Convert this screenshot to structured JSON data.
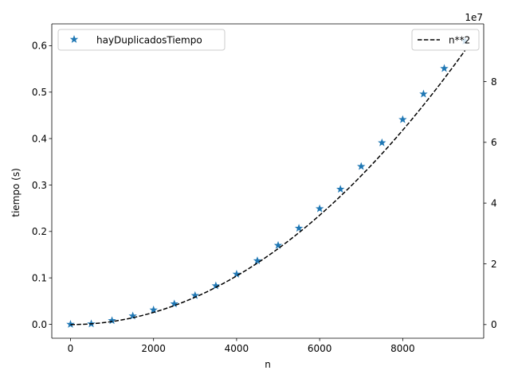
{
  "chart_data": {
    "type": "scatter",
    "title": "",
    "xlabel": "n",
    "ylabel_left": "tiempo (s)",
    "ylabel_right": "",
    "right_axis_offset_text": "1e7",
    "xlim": [
      -450,
      9950
    ],
    "ylim_left": [
      -0.03,
      0.647
    ],
    "ylim_right": [
      -4500000,
      99000000
    ],
    "x_ticks": [
      0,
      2000,
      4000,
      6000,
      8000
    ],
    "y_ticks_left": [
      0.0,
      0.1,
      0.2,
      0.3,
      0.4,
      0.5,
      0.6
    ],
    "y_ticks_left_labels": [
      "0.0",
      "0.1",
      "0.2",
      "0.3",
      "0.4",
      "0.5",
      "0.6"
    ],
    "y_ticks_right": [
      0,
      20000000,
      40000000,
      60000000,
      80000000
    ],
    "y_ticks_right_labels": [
      "0",
      "2",
      "4",
      "6",
      "8"
    ],
    "grid": false,
    "series": [
      {
        "name": "hayDuplicadosTiempo",
        "axis": "left",
        "marker": "star",
        "color": "#1f77b4",
        "x": [
          0,
          500,
          1000,
          1500,
          2000,
          2500,
          3000,
          3500,
          4000,
          4500,
          5000,
          5500,
          6000,
          6500,
          7000,
          7500,
          8000,
          8500,
          9000,
          9500
        ],
        "y": [
          0.0,
          0.001,
          0.008,
          0.018,
          0.031,
          0.044,
          0.062,
          0.083,
          0.108,
          0.137,
          0.17,
          0.207,
          0.249,
          0.291,
          0.34,
          0.391,
          0.441,
          0.496,
          0.551,
          0.61
        ]
      },
      {
        "name": "n**2",
        "axis": "right",
        "line_style": "dashed",
        "color": "#000000",
        "x": [
          0,
          500,
          1000,
          1500,
          2000,
          2500,
          3000,
          3500,
          4000,
          4500,
          5000,
          5500,
          6000,
          6500,
          7000,
          7500,
          8000,
          8500,
          9000,
          9500
        ],
        "y": [
          0,
          250000,
          1000000,
          2250000,
          4000000,
          6250000,
          9000000,
          12250000,
          16000000,
          20250000,
          25000000,
          30250000,
          36000000,
          42250000,
          49000000,
          56250000,
          64000000,
          72250000,
          81000000,
          90250000
        ]
      }
    ],
    "legends": [
      {
        "placement": "upper-left",
        "entries": [
          "hayDuplicadosTiempo"
        ]
      },
      {
        "placement": "upper-right",
        "entries": [
          "n**2"
        ]
      }
    ]
  }
}
